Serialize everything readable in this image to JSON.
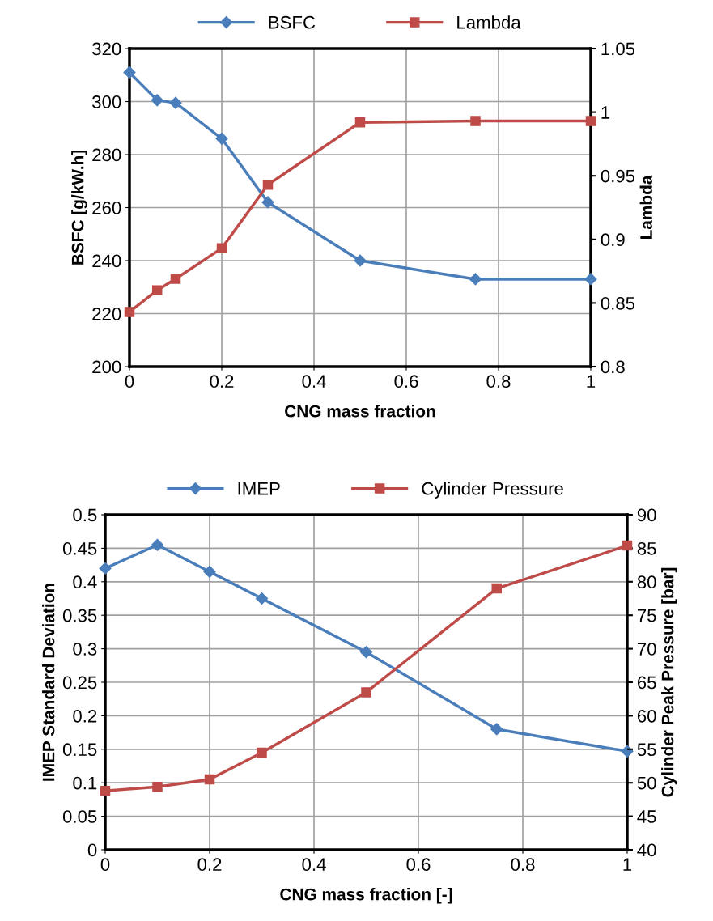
{
  "chart_data": [
    {
      "type": "line",
      "xlabel": "CNG mass fraction",
      "ylabel": "BSFC [g/kW.h]",
      "y2label": "Lambda",
      "xlim": [
        0,
        1
      ],
      "xticks": [
        0,
        0.2,
        0.4,
        0.6,
        0.8,
        1
      ],
      "ylim": [
        200,
        320
      ],
      "yticks": [
        200,
        220,
        240,
        260,
        280,
        300,
        320
      ],
      "y2lim": [
        0.8,
        1.05
      ],
      "y2ticks": [
        0.8,
        0.85,
        0.9,
        0.95,
        1,
        1.05
      ],
      "grid": true,
      "legend": "top",
      "series": [
        {
          "name": "BSFC",
          "color": "#4a7ebb",
          "marker": "diamond",
          "x": [
            0,
            0.06,
            0.1,
            0.2,
            0.3,
            0.5,
            0.75,
            1
          ],
          "values": [
            311,
            300.5,
            299.5,
            286,
            262,
            240,
            233,
            233
          ]
        },
        {
          "name": "Lambda",
          "color": "#be4b48",
          "marker": "square",
          "axis": "y2",
          "x": [
            0,
            0.06,
            0.1,
            0.2,
            0.3,
            0.5,
            0.75,
            1
          ],
          "values": [
            0.843,
            0.86,
            0.869,
            0.893,
            0.943,
            0.992,
            0.993,
            0.993
          ]
        }
      ]
    },
    {
      "type": "line",
      "xlabel": "CNG mass fraction [-]",
      "ylabel": "IMEP Standard Deviation",
      "y2label": "Cylinder Peak Pressure [bar]",
      "xlim": [
        0,
        1
      ],
      "xticks": [
        0,
        0.2,
        0.4,
        0.6,
        0.8,
        1
      ],
      "ylim": [
        0,
        0.5
      ],
      "yticks": [
        0,
        0.05,
        0.1,
        0.15,
        0.2,
        0.25,
        0.3,
        0.35,
        0.4,
        0.45,
        0.5
      ],
      "y2lim": [
        40,
        90
      ],
      "y2ticks": [
        40,
        45,
        50,
        55,
        60,
        65,
        70,
        75,
        80,
        85,
        90
      ],
      "grid": true,
      "legend": "top",
      "series": [
        {
          "name": "IMEP",
          "color": "#4a7ebb",
          "marker": "diamond",
          "x": [
            0,
            0.1,
            0.2,
            0.3,
            0.5,
            0.75,
            1
          ],
          "values": [
            0.42,
            0.455,
            0.415,
            0.375,
            0.295,
            0.18,
            0.147
          ]
        },
        {
          "name": "Cylinder Pressure",
          "color": "#be4b48",
          "marker": "square",
          "axis": "y2",
          "x": [
            0,
            0.1,
            0.2,
            0.3,
            0.5,
            0.75,
            1
          ],
          "values": [
            48.8,
            49.4,
            50.5,
            54.5,
            63.5,
            79,
            85.4
          ]
        }
      ]
    }
  ]
}
